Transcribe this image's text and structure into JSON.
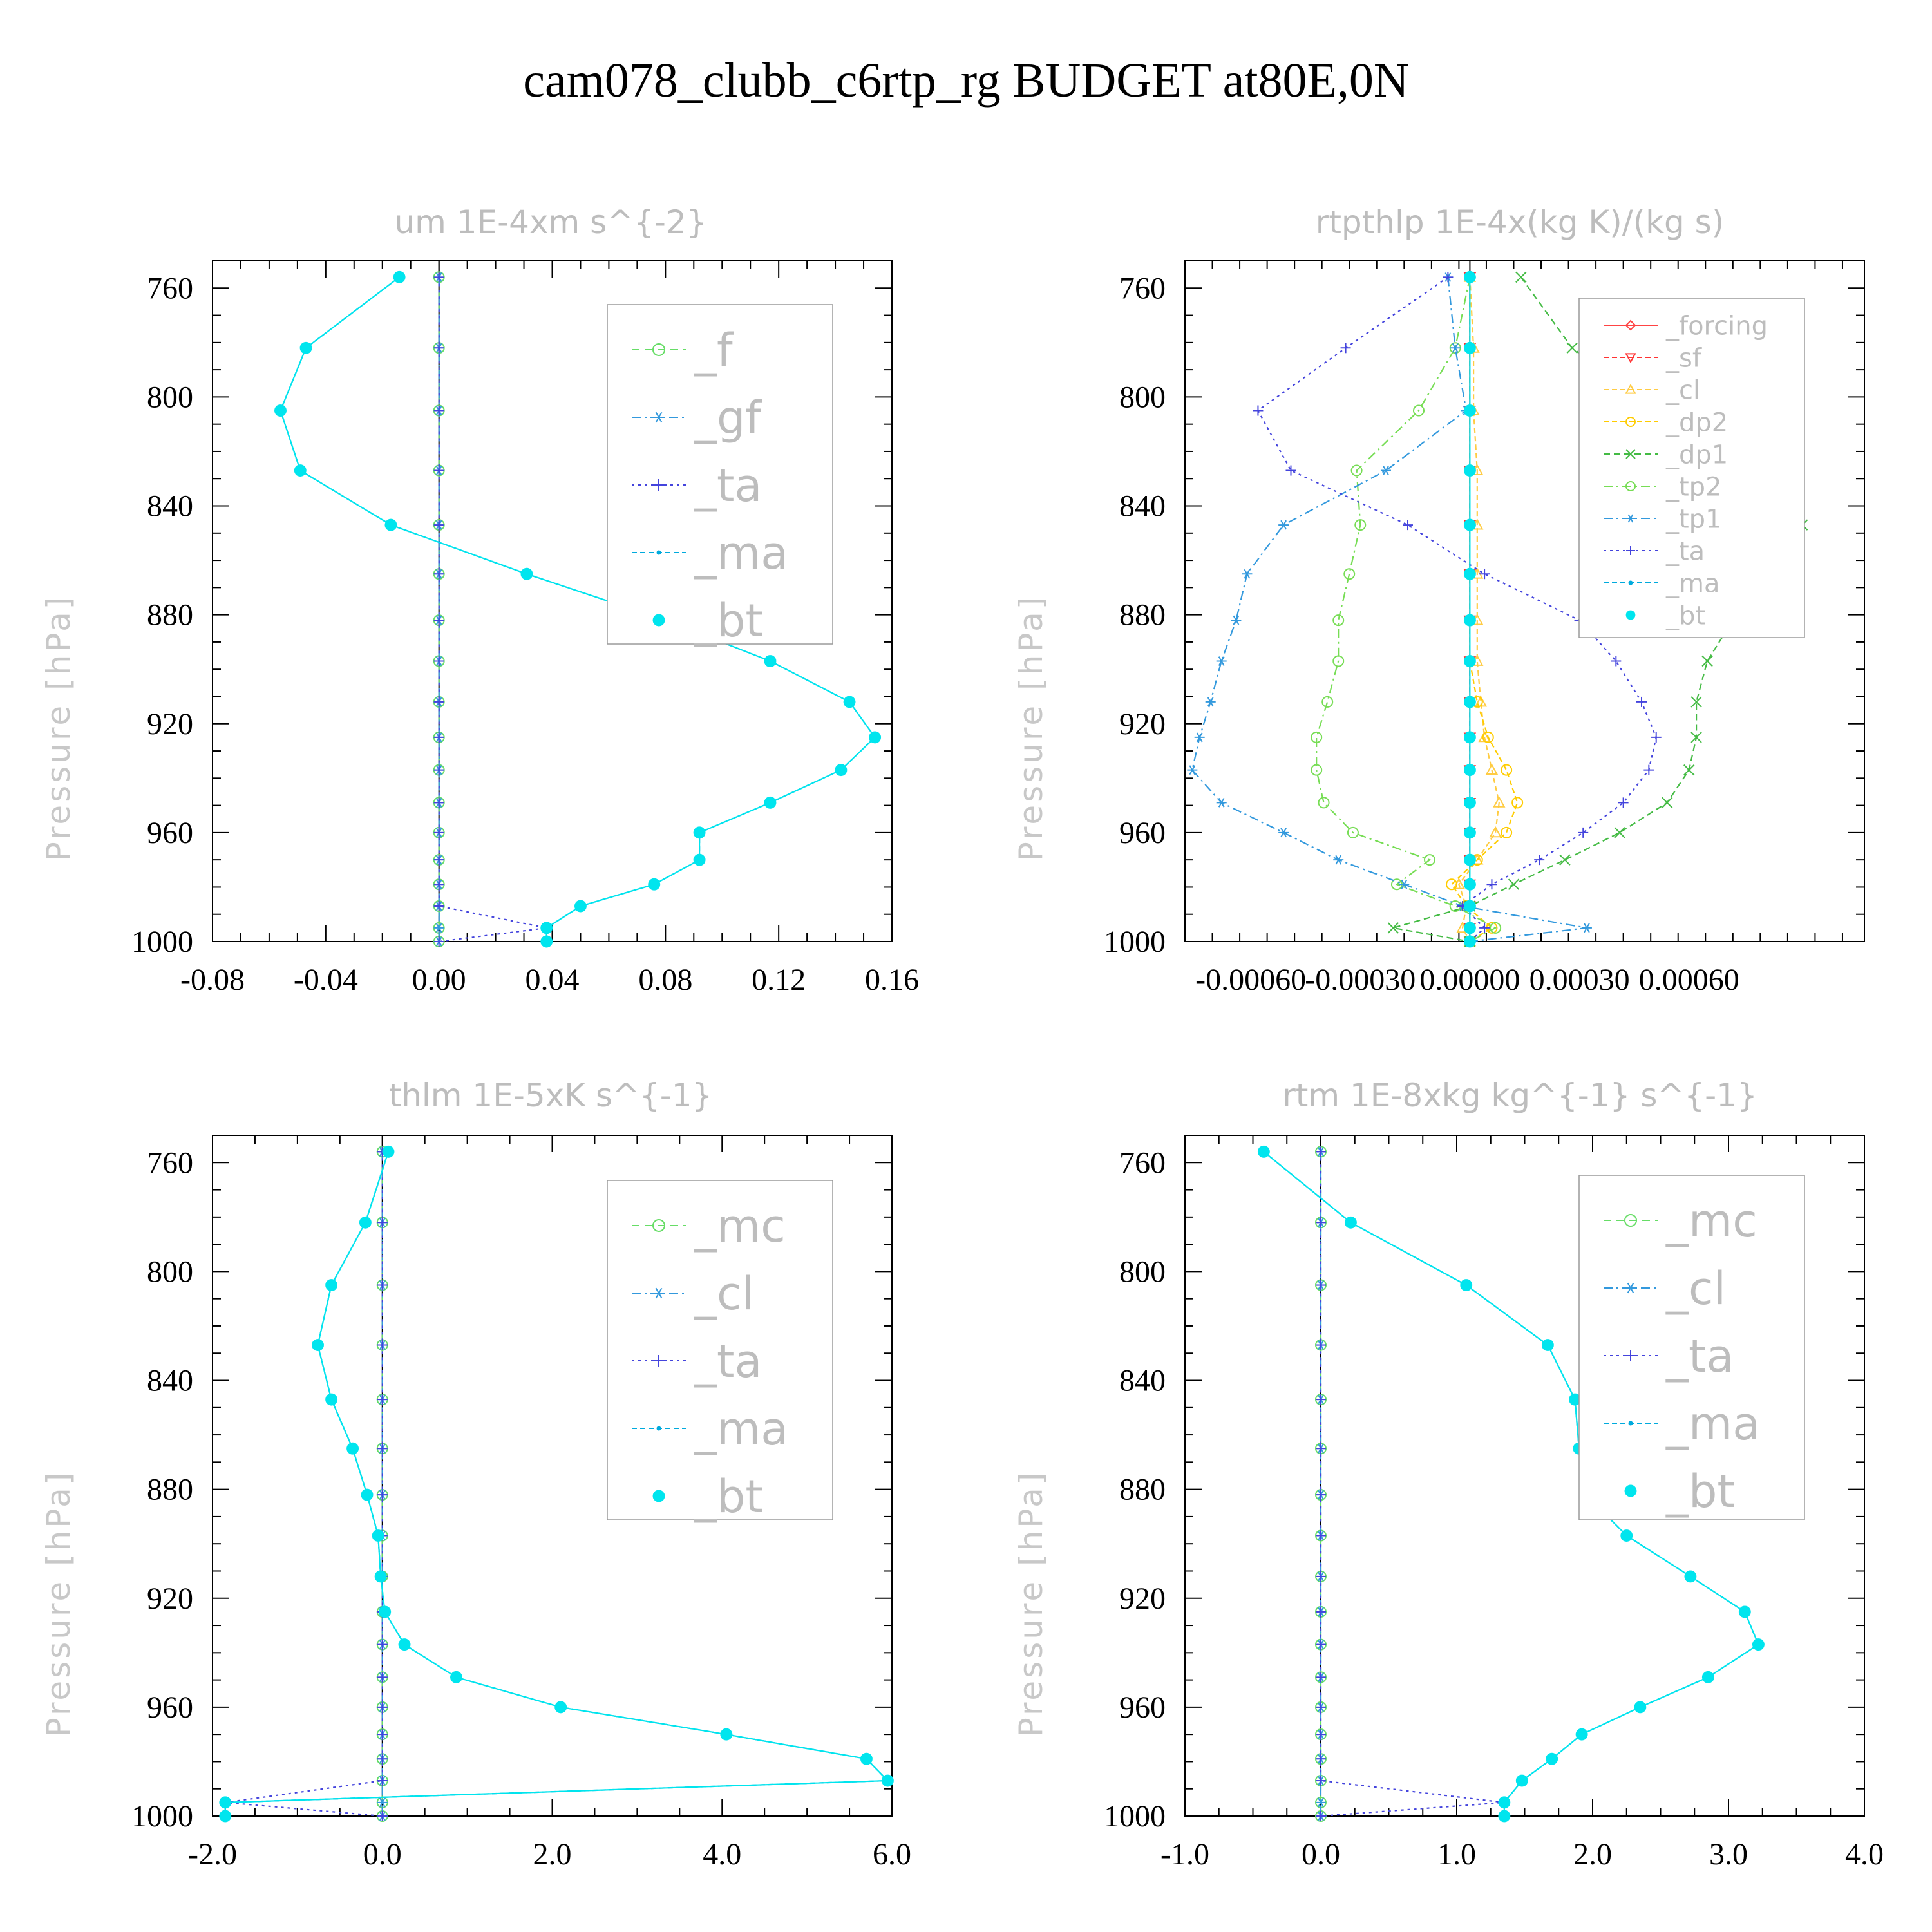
{
  "title": "cam078_clubb_c6rtp_rg  BUDGET at80E,0N",
  "colors": {
    "f": "#66dd66",
    "gf": "#3399dd",
    "ta": "#4444dd",
    "ma": "#00aadd",
    "bt": "#00e5ee",
    "forcing": "#ff4444",
    "sf": "#ff3333",
    "cl_y": "#ffcc44",
    "dp2": "#ffcc00",
    "dp1": "#44bb44",
    "tp2": "#77dd55",
    "tp1": "#3399dd",
    "mc": "#66dd66",
    "cl": "#3399dd"
  },
  "chart_data": [
    {
      "type": "line",
      "title": "um  1E-4xm s^{-2}",
      "ylabel": "Pressure [hPa]",
      "xticks": [
        "-0.08",
        "-0.04",
        "0.00",
        "0.04",
        "0.08",
        "0.12",
        "0.16"
      ],
      "xlim": [
        -0.08,
        0.16
      ],
      "yticks": [
        "760",
        "800",
        "840",
        "880",
        "920",
        "960",
        "1000"
      ],
      "ylim": [
        750,
        1000
      ],
      "legend": [
        "_f",
        "_gf",
        "_ta",
        "_ma",
        "_bt"
      ],
      "levels": [
        756,
        782,
        805,
        827,
        847,
        865,
        882,
        897,
        912,
        925,
        937,
        949,
        960,
        970,
        979,
        987,
        995,
        1000
      ],
      "series": [
        {
          "name": "_f",
          "key": "f",
          "marker": "circle",
          "dash": "12,8",
          "values": [
            0,
            0,
            0,
            0,
            0,
            0,
            0,
            0,
            0,
            0,
            0,
            0,
            0,
            0,
            0,
            0,
            0,
            0
          ]
        },
        {
          "name": "_gf",
          "key": "gf",
          "marker": "star",
          "dash": "14,6,3,6",
          "values": [
            0,
            0,
            0,
            0,
            0,
            0,
            0,
            0,
            0,
            0,
            0,
            0,
            0,
            0,
            0,
            0,
            0,
            0
          ]
        },
        {
          "name": "_ta",
          "key": "ta",
          "marker": "plus",
          "dash": "4,6",
          "values": [
            0,
            0,
            0,
            0,
            0,
            0,
            0,
            0,
            0,
            0,
            0,
            0,
            0,
            0,
            0,
            0,
            0.038,
            0
          ]
        },
        {
          "name": "_ma",
          "key": "ma",
          "marker": "dot",
          "dash": "8,5",
          "values": [
            -0.014,
            -0.047,
            -0.056,
            -0.049,
            -0.017,
            0.031,
            0.08,
            0.117,
            0.145,
            0.154,
            0.142,
            0.117,
            0.092,
            0.092,
            0.076,
            0.05,
            0.038,
            0.038
          ]
        },
        {
          "name": "_bt",
          "key": "bt",
          "marker": "bigdot",
          "dash": "none",
          "values": [
            -0.014,
            -0.047,
            -0.056,
            -0.049,
            -0.017,
            0.031,
            0.08,
            0.117,
            0.145,
            0.154,
            0.142,
            0.117,
            0.092,
            0.092,
            0.076,
            0.05,
            0.038,
            0.038
          ]
        }
      ]
    },
    {
      "type": "line",
      "title": "rtpthlp  1E-4x(kg K)/(kg s)",
      "ylabel": "Pressure [hPa]",
      "xticks": [
        "-0.00060",
        "-0.00030",
        "0.00000",
        "0.00030",
        "0.00060"
      ],
      "xlim": [
        -0.00078,
        0.00108
      ],
      "yticks": [
        "760",
        "800",
        "840",
        "880",
        "920",
        "960",
        "1000"
      ],
      "ylim": [
        750,
        1000
      ],
      "legend": [
        "_forcing",
        "_sf",
        "_cl",
        "_dp2",
        "_dp1",
        "_tp2",
        "_tp1",
        "_ta",
        "_ma",
        "_bt"
      ],
      "levels": [
        756,
        782,
        805,
        827,
        847,
        865,
        882,
        897,
        912,
        925,
        937,
        949,
        960,
        970,
        979,
        987,
        995,
        1000
      ],
      "series": [
        {
          "name": "_forcing",
          "key": "forcing",
          "marker": "diamond",
          "dash": "none",
          "values": [
            0,
            0,
            0,
            0,
            0,
            0,
            0,
            0,
            0,
            0,
            0,
            0,
            0,
            0,
            0,
            0,
            0,
            0
          ]
        },
        {
          "name": "_sf",
          "key": "sf",
          "marker": "tridown",
          "dash": "8,5",
          "values": [
            0,
            0,
            0,
            0,
            0,
            0,
            0,
            0,
            0,
            0,
            0,
            0,
            0,
            0,
            0,
            0,
            0,
            0
          ]
        },
        {
          "name": "_cl",
          "key": "cl_y",
          "marker": "triup",
          "dash": "8,5",
          "values": [
            0,
            1e-05,
            1e-05,
            2e-05,
            2e-05,
            2e-05,
            2e-05,
            2e-05,
            3e-05,
            4e-05,
            6e-05,
            8e-05,
            7e-05,
            2e-05,
            -3e-05,
            -1e-05,
            -2e-05,
            0
          ]
        },
        {
          "name": "_dp2",
          "key": "dp2",
          "marker": "circle",
          "dash": "8,5",
          "values": [
            0,
            0,
            0,
            0,
            0,
            0,
            0,
            0,
            2e-05,
            5e-05,
            0.0001,
            0.00013,
            0.0001,
            2e-05,
            -5e-05,
            -1e-05,
            6e-05,
            0
          ]
        },
        {
          "name": "_dp1",
          "key": "dp1",
          "marker": "x",
          "dash": "10,6",
          "values": [
            0.00014,
            0.00028,
            0.00052,
            0.00089,
            0.00091,
            0.00082,
            0.00072,
            0.00065,
            0.00062,
            0.00062,
            0.0006,
            0.00054,
            0.00041,
            0.00026,
            0.00012,
            0,
            -0.00021,
            0
          ]
        },
        {
          "name": "_tp2",
          "key": "tp2",
          "marker": "circle",
          "dash": "14,6,3,6",
          "values": [
            0,
            -4e-05,
            -0.00014,
            -0.00031,
            -0.0003,
            -0.00033,
            -0.00036,
            -0.00036,
            -0.00039,
            -0.00042,
            -0.00042,
            -0.0004,
            -0.00032,
            -0.00011,
            -0.0002,
            -4e-05,
            7e-05,
            0
          ]
        },
        {
          "name": "_tp1",
          "key": "tp1",
          "marker": "star",
          "dash": "14,6,3,6",
          "values": [
            -6e-05,
            -4e-05,
            -1e-05,
            -0.00023,
            -0.00051,
            -0.00061,
            -0.00064,
            -0.00068,
            -0.00071,
            -0.00074,
            -0.00076,
            -0.00068,
            -0.00051,
            -0.00036,
            -0.00018,
            -2e-05,
            0.00032,
            0
          ]
        },
        {
          "name": "_ta",
          "key": "ta",
          "marker": "plus",
          "dash": "4,6",
          "values": [
            -6e-05,
            -0.00034,
            -0.00058,
            -0.00049,
            -0.00017,
            4e-05,
            0.0003,
            0.0004,
            0.00047,
            0.00051,
            0.00049,
            0.00042,
            0.00031,
            0.00019,
            6e-05,
            -2e-05,
            4e-05,
            0
          ]
        },
        {
          "name": "_ma",
          "key": "ma",
          "marker": "dot",
          "dash": "8,5",
          "values": [
            0,
            0,
            0,
            0,
            0,
            0,
            0,
            0,
            0,
            0,
            0,
            0,
            0,
            0,
            0,
            0,
            0,
            0
          ]
        },
        {
          "name": "_bt",
          "key": "bt",
          "marker": "bigdot",
          "dash": "none",
          "values": [
            0,
            0,
            0,
            0,
            0,
            0,
            0,
            0,
            0,
            0,
            0,
            0,
            0,
            0,
            0,
            0,
            0,
            0
          ]
        }
      ]
    },
    {
      "type": "line",
      "title": "thlm  1E-5xK s^{-1}",
      "ylabel": "Pressure [hPa]",
      "xticks": [
        "-2.0",
        "0.0",
        "2.0",
        "4.0",
        "6.0"
      ],
      "xlim": [
        -2,
        6
      ],
      "yticks": [
        "760",
        "800",
        "840",
        "880",
        "920",
        "960",
        "1000"
      ],
      "ylim": [
        750,
        1000
      ],
      "legend": [
        "_mc",
        "_cl",
        "_ta",
        "_ma",
        "_bt"
      ],
      "levels": [
        756,
        782,
        805,
        827,
        847,
        865,
        882,
        897,
        912,
        925,
        937,
        949,
        960,
        970,
        979,
        987,
        995,
        1000
      ],
      "series": [
        {
          "name": "_mc",
          "key": "mc",
          "marker": "circle",
          "dash": "12,8",
          "values": [
            0,
            0,
            0,
            0,
            0,
            0,
            0,
            0,
            0,
            0,
            0,
            0,
            0,
            0,
            0,
            0,
            0,
            0
          ]
        },
        {
          "name": "_cl",
          "key": "cl",
          "marker": "star",
          "dash": "14,6,3,6",
          "values": [
            0,
            0,
            0,
            0,
            0,
            0,
            0,
            0,
            0,
            0,
            0,
            0,
            0,
            0,
            0,
            0,
            0,
            0
          ]
        },
        {
          "name": "_ta",
          "key": "ta",
          "marker": "plus",
          "dash": "4,6",
          "values": [
            0,
            0,
            0,
            0,
            0,
            0,
            0,
            0,
            0,
            0,
            0,
            0,
            0,
            0,
            0,
            0,
            -1.85,
            0
          ]
        },
        {
          "name": "_ma",
          "key": "ma",
          "marker": "dot",
          "dash": "8,5",
          "values": [
            0.07,
            -0.2,
            -0.6,
            -0.76,
            -0.6,
            -0.35,
            -0.18,
            -0.05,
            -0.02,
            0.03,
            0.26,
            0.87,
            2.1,
            4.05,
            5.7,
            5.95,
            -1.85,
            -1.85
          ]
        },
        {
          "name": "_bt",
          "key": "bt",
          "marker": "bigdot",
          "dash": "none",
          "values": [
            0.07,
            -0.2,
            -0.6,
            -0.76,
            -0.6,
            -0.35,
            -0.18,
            -0.05,
            -0.02,
            0.03,
            0.26,
            0.87,
            2.1,
            4.05,
            5.7,
            5.95,
            -1.85,
            -1.85
          ]
        }
      ]
    },
    {
      "type": "line",
      "title": "rtm  1E-8xkg kg^{-1} s^{-1}",
      "ylabel": "Pressure [hPa]",
      "xticks": [
        "-1.0",
        "0.0",
        "1.0",
        "2.0",
        "3.0",
        "4.0"
      ],
      "xlim": [
        -1,
        4
      ],
      "yticks": [
        "760",
        "800",
        "840",
        "880",
        "920",
        "960",
        "1000"
      ],
      "ylim": [
        750,
        1000
      ],
      "legend": [
        "_mc",
        "_cl",
        "_ta",
        "_ma",
        "_bt"
      ],
      "levels": [
        756,
        782,
        805,
        827,
        847,
        865,
        882,
        897,
        912,
        925,
        937,
        949,
        960,
        970,
        979,
        987,
        995,
        1000
      ],
      "series": [
        {
          "name": "_mc",
          "key": "mc",
          "marker": "circle",
          "dash": "12,8",
          "values": [
            0,
            0,
            0,
            0,
            0,
            0,
            0,
            0,
            0,
            0,
            0,
            0,
            0,
            0,
            0,
            0,
            0,
            0
          ]
        },
        {
          "name": "_cl",
          "key": "cl",
          "marker": "star",
          "dash": "14,6,3,6",
          "values": [
            0,
            0,
            0,
            0,
            0,
            0,
            0,
            0,
            0,
            0,
            0,
            0,
            0,
            0,
            0,
            0,
            0,
            0
          ]
        },
        {
          "name": "_ta",
          "key": "ta",
          "marker": "plus",
          "dash": "4,6",
          "values": [
            0,
            0,
            0,
            0,
            0,
            0,
            0,
            0,
            0,
            0,
            0,
            0,
            0,
            0,
            0,
            0,
            1.35,
            0
          ]
        },
        {
          "name": "_ma",
          "key": "ma",
          "marker": "dot",
          "dash": "8,5",
          "values": [
            -0.42,
            0.22,
            1.07,
            1.67,
            1.87,
            1.9,
            1.95,
            2.25,
            2.72,
            3.12,
            3.22,
            2.85,
            2.35,
            1.92,
            1.7,
            1.48,
            1.35,
            1.35
          ]
        },
        {
          "name": "_bt",
          "key": "bt",
          "marker": "bigdot",
          "dash": "none",
          "values": [
            -0.42,
            0.22,
            1.07,
            1.67,
            1.87,
            1.9,
            1.95,
            2.25,
            2.72,
            3.12,
            3.22,
            2.85,
            2.35,
            1.92,
            1.7,
            1.48,
            1.35,
            1.35
          ]
        }
      ]
    }
  ]
}
